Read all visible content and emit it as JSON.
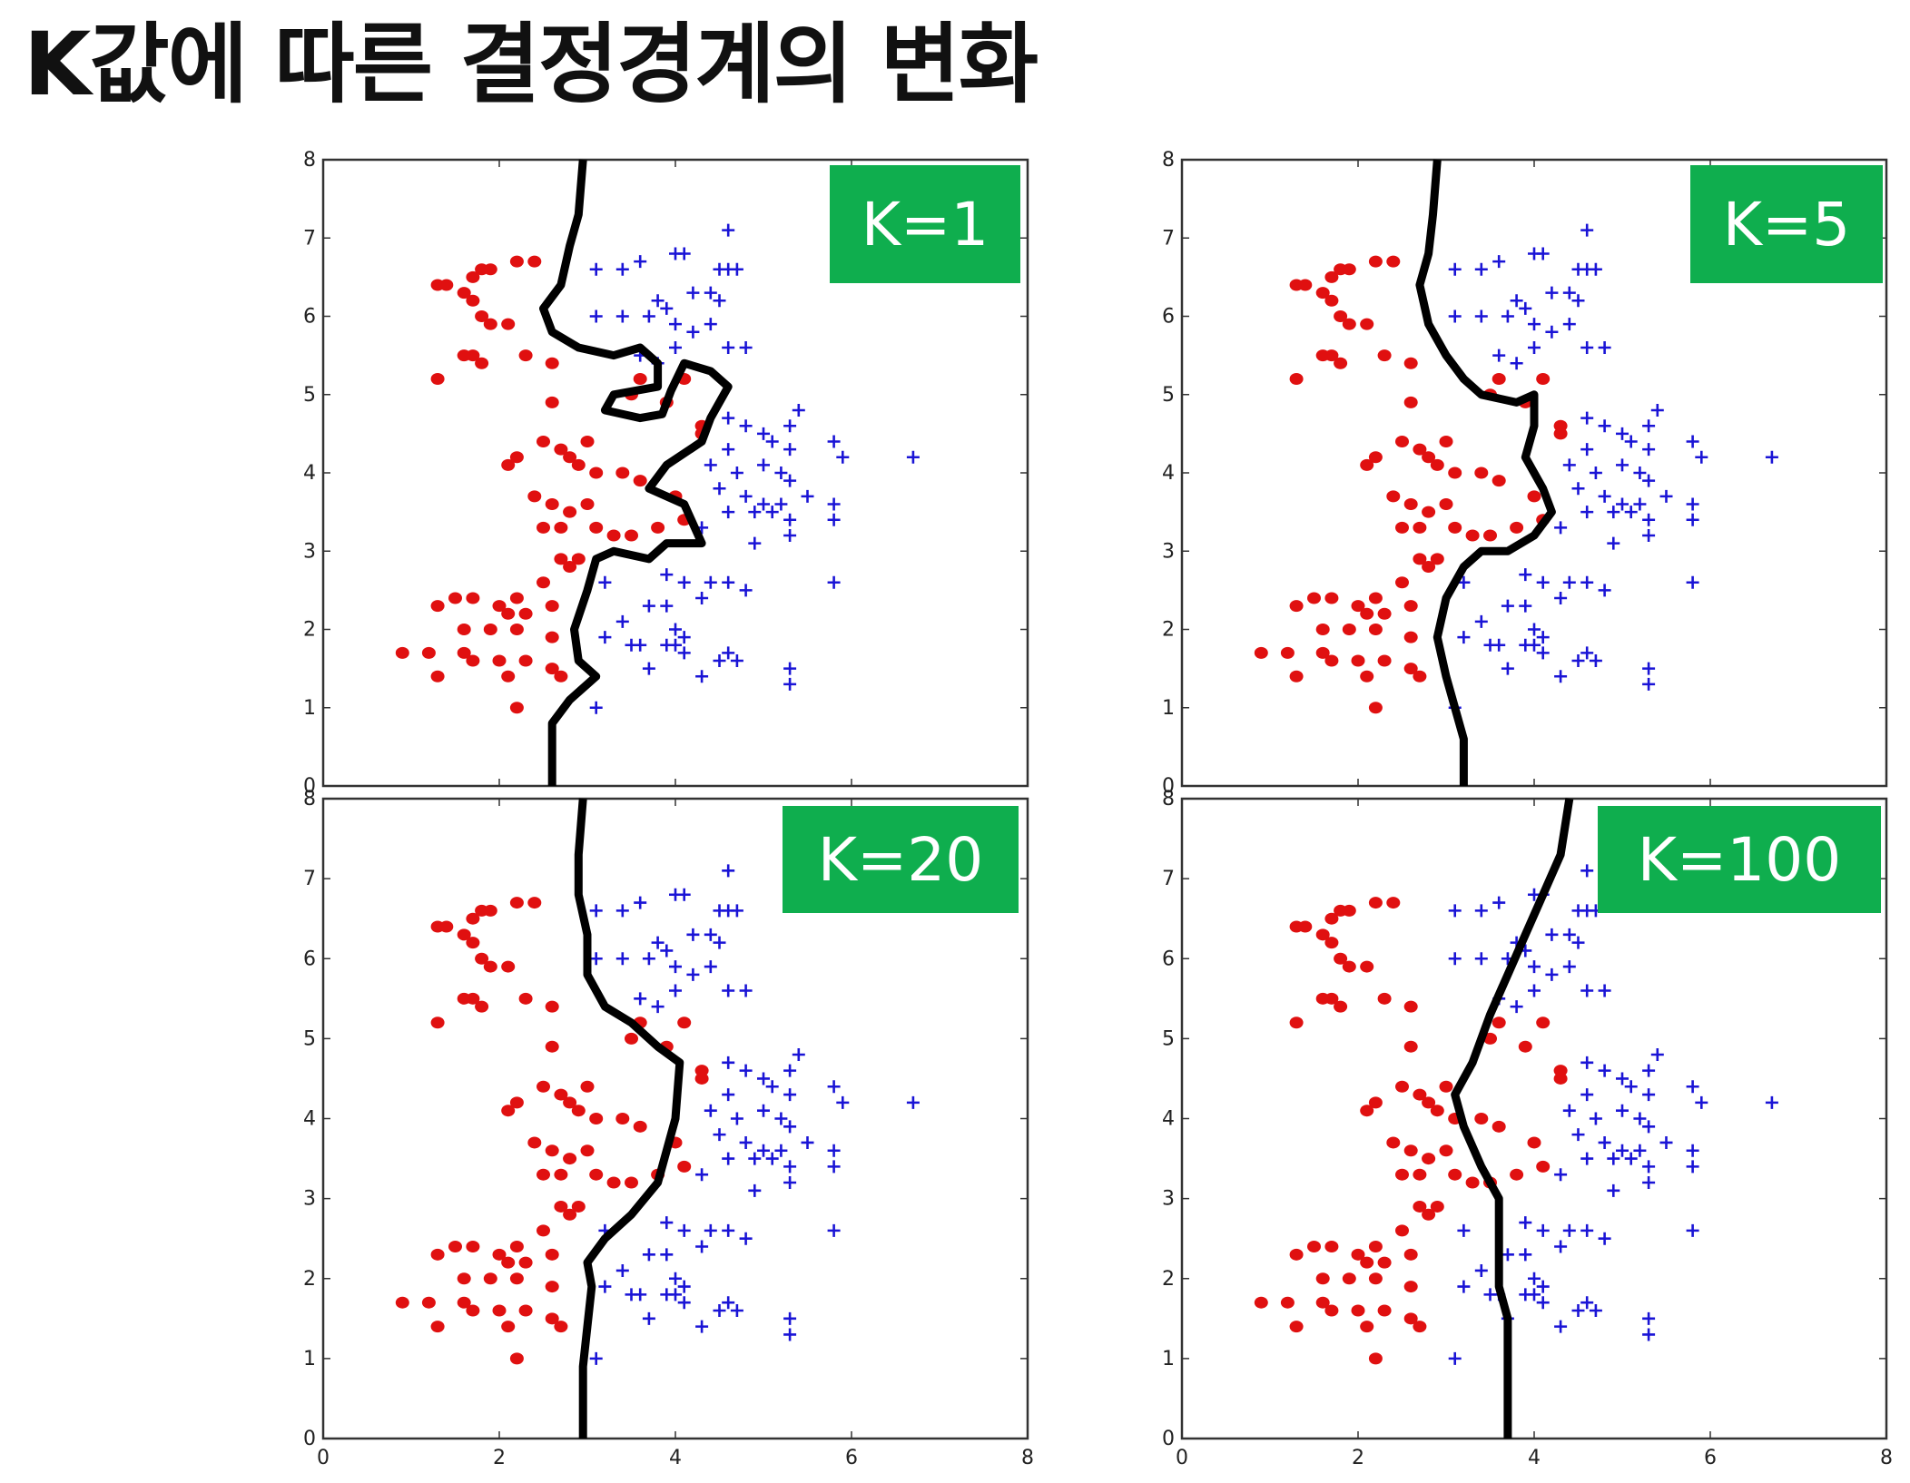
{
  "title": "K값에 따른 결정경계의 변화",
  "colors": {
    "class_a": "#e01010",
    "class_b": "#1a14d6",
    "boundary": "#000000",
    "badge": "#0fae4e"
  },
  "chart_data": {
    "type": "scatter",
    "shared": {
      "xlim": [
        0,
        8
      ],
      "ylim": [
        0,
        8
      ],
      "x_ticks": [
        "0",
        "2",
        "4",
        "6",
        "8"
      ],
      "y_ticks": [
        "0",
        "1",
        "2",
        "3",
        "4",
        "5",
        "6",
        "7",
        "8"
      ],
      "series": [
        {
          "marker": "dot",
          "color": "#e01010",
          "points": [
            [
              1.3,
              6.4
            ],
            [
              1.4,
              6.4
            ],
            [
              1.6,
              6.3
            ],
            [
              1.7,
              6.5
            ],
            [
              1.8,
              6.6
            ],
            [
              1.9,
              6.6
            ],
            [
              1.7,
              6.2
            ],
            [
              1.8,
              6.0
            ],
            [
              1.9,
              5.9
            ],
            [
              2.1,
              5.9
            ],
            [
              2.2,
              6.7
            ],
            [
              2.4,
              6.7
            ],
            [
              1.7,
              5.5
            ],
            [
              1.8,
              5.4
            ],
            [
              1.6,
              5.5
            ],
            [
              1.3,
              5.2
            ],
            [
              2.3,
              5.5
            ],
            [
              2.6,
              5.4
            ],
            [
              2.6,
              4.9
            ],
            [
              2.5,
              4.4
            ],
            [
              2.2,
              4.2
            ],
            [
              2.1,
              4.1
            ],
            [
              2.7,
              4.3
            ],
            [
              3.0,
              4.4
            ],
            [
              2.8,
              4.2
            ],
            [
              2.9,
              4.1
            ],
            [
              3.1,
              4.0
            ],
            [
              3.4,
              4.0
            ],
            [
              3.6,
              3.9
            ],
            [
              2.4,
              3.7
            ],
            [
              2.6,
              3.6
            ],
            [
              2.8,
              3.5
            ],
            [
              3.0,
              3.6
            ],
            [
              2.5,
              3.3
            ],
            [
              2.7,
              3.3
            ],
            [
              3.1,
              3.3
            ],
            [
              3.3,
              3.2
            ],
            [
              3.5,
              3.2
            ],
            [
              3.8,
              3.3
            ],
            [
              2.7,
              2.9
            ],
            [
              2.9,
              2.9
            ],
            [
              2.8,
              2.8
            ],
            [
              2.5,
              2.6
            ],
            [
              2.2,
              2.4
            ],
            [
              1.7,
              2.4
            ],
            [
              1.5,
              2.4
            ],
            [
              1.3,
              2.3
            ],
            [
              2.0,
              2.3
            ],
            [
              2.1,
              2.2
            ],
            [
              2.3,
              2.2
            ],
            [
              2.6,
              2.3
            ],
            [
              1.6,
              2.0
            ],
            [
              1.9,
              2.0
            ],
            [
              2.2,
              2.0
            ],
            [
              2.6,
              1.9
            ],
            [
              0.9,
              1.7
            ],
            [
              1.2,
              1.7
            ],
            [
              1.6,
              1.7
            ],
            [
              1.7,
              1.6
            ],
            [
              2.0,
              1.6
            ],
            [
              2.3,
              1.6
            ],
            [
              2.6,
              1.5
            ],
            [
              2.7,
              1.4
            ],
            [
              1.3,
              1.4
            ],
            [
              2.1,
              1.4
            ],
            [
              2.2,
              1.0
            ],
            [
              3.6,
              5.2
            ],
            [
              4.1,
              5.2
            ],
            [
              3.9,
              4.9
            ],
            [
              4.3,
              4.5
            ],
            [
              4.0,
              3.7
            ],
            [
              4.1,
              3.4
            ],
            [
              4.3,
              4.6
            ],
            [
              3.5,
              5.0
            ]
          ]
        },
        {
          "marker": "plus",
          "color": "#1a14d6",
          "points": [
            [
              3.1,
              6.6
            ],
            [
              3.4,
              6.6
            ],
            [
              3.6,
              6.7
            ],
            [
              4.0,
              6.8
            ],
            [
              4.1,
              6.8
            ],
            [
              4.6,
              7.1
            ],
            [
              3.8,
              6.2
            ],
            [
              3.9,
              6.1
            ],
            [
              4.2,
              6.3
            ],
            [
              4.4,
              6.3
            ],
            [
              4.5,
              6.6
            ],
            [
              4.6,
              6.6
            ],
            [
              4.7,
              6.6
            ],
            [
              3.1,
              6.0
            ],
            [
              3.4,
              6.0
            ],
            [
              3.7,
              6.0
            ],
            [
              4.0,
              5.9
            ],
            [
              4.4,
              5.9
            ],
            [
              4.5,
              6.2
            ],
            [
              4.2,
              5.8
            ],
            [
              4.0,
              5.6
            ],
            [
              4.6,
              5.6
            ],
            [
              4.8,
              5.6
            ],
            [
              3.6,
              5.5
            ],
            [
              3.8,
              5.4
            ],
            [
              4.6,
              4.7
            ],
            [
              4.8,
              4.6
            ],
            [
              5.0,
              4.5
            ],
            [
              5.3,
              4.6
            ],
            [
              5.4,
              4.8
            ],
            [
              5.1,
              4.4
            ],
            [
              4.6,
              4.3
            ],
            [
              5.3,
              4.3
            ],
            [
              5.8,
              4.4
            ],
            [
              5.9,
              4.2
            ],
            [
              6.7,
              4.2
            ],
            [
              4.4,
              4.1
            ],
            [
              4.7,
              4.0
            ],
            [
              5.0,
              4.1
            ],
            [
              5.2,
              4.0
            ],
            [
              5.3,
              3.9
            ],
            [
              4.5,
              3.8
            ],
            [
              4.8,
              3.7
            ],
            [
              5.0,
              3.6
            ],
            [
              5.2,
              3.6
            ],
            [
              5.5,
              3.7
            ],
            [
              5.8,
              3.6
            ],
            [
              4.6,
              3.5
            ],
            [
              4.9,
              3.5
            ],
            [
              5.1,
              3.5
            ],
            [
              5.3,
              3.4
            ],
            [
              5.8,
              3.4
            ],
            [
              4.3,
              3.3
            ],
            [
              4.9,
              3.1
            ],
            [
              5.3,
              3.2
            ],
            [
              3.9,
              2.7
            ],
            [
              4.1,
              2.6
            ],
            [
              4.4,
              2.6
            ],
            [
              4.6,
              2.6
            ],
            [
              4.8,
              2.5
            ],
            [
              3.2,
              2.6
            ],
            [
              3.9,
              2.3
            ],
            [
              4.3,
              2.4
            ],
            [
              3.7,
              2.3
            ],
            [
              5.8,
              2.6
            ],
            [
              3.4,
              2.1
            ],
            [
              4.0,
              2.0
            ],
            [
              4.1,
              1.9
            ],
            [
              3.5,
              1.8
            ],
            [
              3.6,
              1.8
            ],
            [
              3.9,
              1.8
            ],
            [
              4.0,
              1.8
            ],
            [
              3.2,
              1.9
            ],
            [
              4.1,
              1.7
            ],
            [
              4.5,
              1.6
            ],
            [
              4.6,
              1.7
            ],
            [
              4.7,
              1.6
            ],
            [
              3.7,
              1.5
            ],
            [
              4.3,
              1.4
            ],
            [
              5.3,
              1.5
            ],
            [
              5.3,
              1.3
            ],
            [
              3.1,
              1.0
            ]
          ]
        }
      ]
    },
    "panels": [
      {
        "label": "K=1",
        "boundary": [
          [
            2.6,
            0
          ],
          [
            2.6,
            0.8
          ],
          [
            2.8,
            1.1
          ],
          [
            3.1,
            1.4
          ],
          [
            2.9,
            1.6
          ],
          [
            2.85,
            2.0
          ],
          [
            3.0,
            2.5
          ],
          [
            3.1,
            2.9
          ],
          [
            3.3,
            3.0
          ],
          [
            3.7,
            2.9
          ],
          [
            3.9,
            3.1
          ],
          [
            4.3,
            3.1
          ],
          [
            4.1,
            3.6
          ],
          [
            3.7,
            3.8
          ],
          [
            3.9,
            4.1
          ],
          [
            4.3,
            4.4
          ],
          [
            4.4,
            4.7
          ],
          [
            4.6,
            5.1
          ],
          [
            4.4,
            5.3
          ],
          [
            4.1,
            5.4
          ],
          [
            3.95,
            5.05
          ],
          [
            3.85,
            4.75
          ],
          [
            3.6,
            4.7
          ],
          [
            3.2,
            4.8
          ],
          [
            3.3,
            5.0
          ],
          [
            3.8,
            5.1
          ],
          [
            3.8,
            5.4
          ],
          [
            3.6,
            5.6
          ],
          [
            3.3,
            5.5
          ],
          [
            2.9,
            5.6
          ],
          [
            2.6,
            5.8
          ],
          [
            2.5,
            6.1
          ],
          [
            2.7,
            6.4
          ],
          [
            2.8,
            6.9
          ],
          [
            2.9,
            7.3
          ],
          [
            2.95,
            8
          ]
        ]
      },
      {
        "label": "K=5",
        "boundary": [
          [
            3.2,
            0
          ],
          [
            3.2,
            0.6
          ],
          [
            3.1,
            1.0
          ],
          [
            3.0,
            1.4
          ],
          [
            2.9,
            1.9
          ],
          [
            3.0,
            2.4
          ],
          [
            3.2,
            2.8
          ],
          [
            3.4,
            3.0
          ],
          [
            3.7,
            3.0
          ],
          [
            4.0,
            3.2
          ],
          [
            4.2,
            3.5
          ],
          [
            4.1,
            3.8
          ],
          [
            3.9,
            4.2
          ],
          [
            4.0,
            4.6
          ],
          [
            4.0,
            5.0
          ],
          [
            3.8,
            4.9
          ],
          [
            3.4,
            5.0
          ],
          [
            3.2,
            5.2
          ],
          [
            3.0,
            5.5
          ],
          [
            2.8,
            5.9
          ],
          [
            2.7,
            6.4
          ],
          [
            2.8,
            6.8
          ],
          [
            2.85,
            7.3
          ],
          [
            2.9,
            8
          ]
        ]
      },
      {
        "label": "K=20",
        "boundary": [
          [
            2.95,
            0
          ],
          [
            2.95,
            0.9
          ],
          [
            3.0,
            1.4
          ],
          [
            3.05,
            1.9
          ],
          [
            3.0,
            2.2
          ],
          [
            3.2,
            2.5
          ],
          [
            3.5,
            2.8
          ],
          [
            3.8,
            3.2
          ],
          [
            3.9,
            3.6
          ],
          [
            4.0,
            4.0
          ],
          [
            4.05,
            4.7
          ],
          [
            3.8,
            4.9
          ],
          [
            3.5,
            5.2
          ],
          [
            3.2,
            5.4
          ],
          [
            3.0,
            5.8
          ],
          [
            3.0,
            6.3
          ],
          [
            2.9,
            6.8
          ],
          [
            2.9,
            7.3
          ],
          [
            2.95,
            8
          ]
        ]
      },
      {
        "label": "K=100",
        "boundary": [
          [
            3.7,
            0
          ],
          [
            3.7,
            0.7
          ],
          [
            3.7,
            1.5
          ],
          [
            3.6,
            1.9
          ],
          [
            3.6,
            2.4
          ],
          [
            3.6,
            3.0
          ],
          [
            3.4,
            3.4
          ],
          [
            3.2,
            3.9
          ],
          [
            3.1,
            4.3
          ],
          [
            3.3,
            4.7
          ],
          [
            3.5,
            5.3
          ],
          [
            3.7,
            5.8
          ],
          [
            3.9,
            6.3
          ],
          [
            4.1,
            6.8
          ],
          [
            4.3,
            7.3
          ],
          [
            4.4,
            8
          ]
        ]
      }
    ]
  }
}
